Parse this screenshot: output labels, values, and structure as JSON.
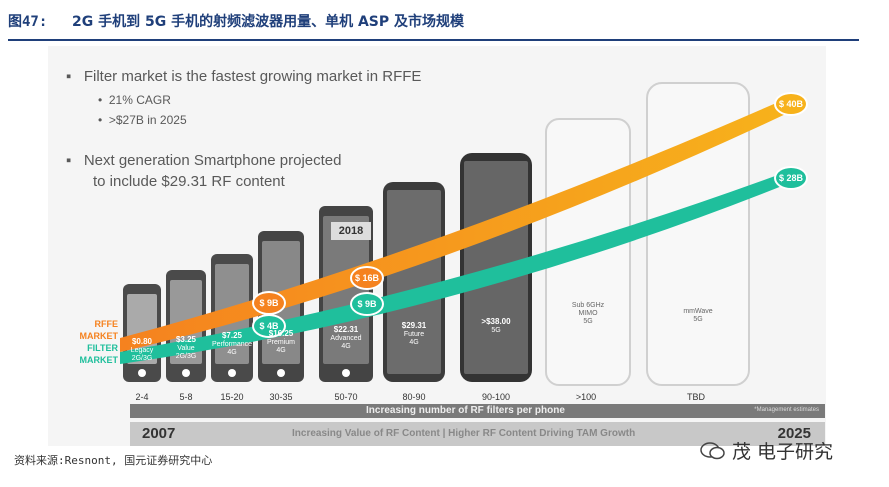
{
  "figure": {
    "number": "图47:",
    "title": "2G 手机到 5G 手机的射频滤波器用量、单机 ASP 及市场规模"
  },
  "bullets": {
    "b1": "Filter market is the fastest growing market in RFFE",
    "b1_sub1": "21% CAGR",
    "b1_sub2": ">$27B in 2025",
    "b2_line1": "Next generation Smartphone projected",
    "b2_line2": "to include $29.31 RF content"
  },
  "year_tag": "2018",
  "market_labels": {
    "rffe_1": "RFFE",
    "rffe_2": "MARKET",
    "filter_1": "FILTER",
    "filter_2": "MARKET"
  },
  "phones": [
    {
      "value": "$0.80",
      "gen1": "Legacy",
      "gen2": "2G/3G",
      "count": "2-4"
    },
    {
      "value": "$3.25",
      "gen1": "Value",
      "gen2": "2G/3G",
      "count": "5-8"
    },
    {
      "value": "$7.25",
      "gen1": "Performance",
      "gen2": "4G",
      "count": "15-20"
    },
    {
      "value": "$16.25",
      "gen1": "Premium",
      "gen2": "4G",
      "count": "30-35"
    },
    {
      "value": "$22.31",
      "gen1": "Advanced",
      "gen2": "4G",
      "count": "50-70"
    },
    {
      "value": "$29.31",
      "gen1": "Future",
      "gen2": "4G",
      "count": "80-90"
    },
    {
      "value": ">$38.00",
      "gen1": "5G",
      "gen2": "",
      "count": "90-100"
    },
    {
      "value": "Sub 6GHz",
      "gen1": "MIMO",
      "gen2": "5G",
      "count": ">100"
    },
    {
      "value": "mmWave",
      "gen1": "5G",
      "gen2": "",
      "count": "TBD"
    }
  ],
  "badges": {
    "rffe": [
      "$ 9B",
      "$ 16B",
      "$ 40B"
    ],
    "filter": [
      "$ 4B",
      "$ 9B",
      "$ 28B"
    ]
  },
  "band1": {
    "text": "Increasing number of RF filters per phone",
    "note": "*Management estimates"
  },
  "band2": {
    "left": "2007",
    "text": "Increasing Value of RF Content | Higher RF Content Driving TAM Growth",
    "right": "2025"
  },
  "colors": {
    "rffe": "#f5821f",
    "rffe_end": "#f7b21b",
    "filter": "#1fbf9c",
    "title": "#1f3f7a"
  },
  "source": "资料来源:Resnont, 国元证券研究中心",
  "watermark": "茂 电子研究"
}
